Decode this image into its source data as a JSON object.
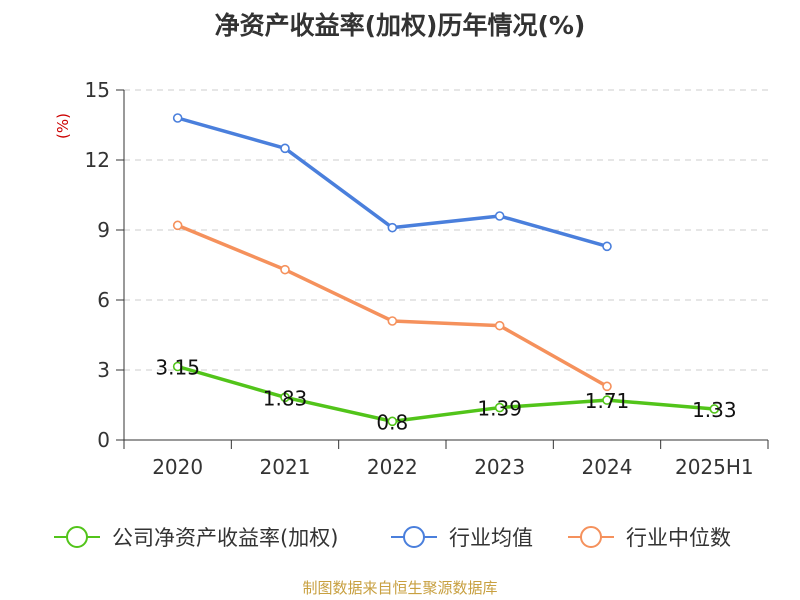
{
  "chart_data": {
    "type": "line",
    "title": "净资产收益率(加权)历年情况(%)",
    "ylabel": "(%)",
    "categories": [
      "2020",
      "2021",
      "2022",
      "2023",
      "2024",
      "2025H1"
    ],
    "ylim": [
      0,
      15
    ],
    "yticks": [
      0,
      3,
      6,
      9,
      12,
      15
    ],
    "grid": true,
    "legend_position": "bottom",
    "series": [
      {
        "name": "公司净资产收益率(加权)",
        "color": "#52c41a",
        "values": [
          3.15,
          1.83,
          0.8,
          1.39,
          1.71,
          1.33
        ],
        "labels": [
          "3.15",
          "1.83",
          "0.8",
          "1.39",
          "1.71",
          "1.33"
        ]
      },
      {
        "name": "行业均值",
        "color": "#4a7fdc",
        "values": [
          13.8,
          12.5,
          9.1,
          9.6,
          8.3,
          null
        ]
      },
      {
        "name": "行业中位数",
        "color": "#f5915c",
        "values": [
          9.2,
          7.3,
          5.1,
          4.9,
          2.3,
          null
        ]
      }
    ]
  },
  "source": "制图数据来自恒生聚源数据库",
  "colors": {
    "title": "#333333",
    "ylabel": "#cc0000",
    "source": "#c8a040",
    "grid": "#cccccc",
    "axis": "#333333"
  }
}
